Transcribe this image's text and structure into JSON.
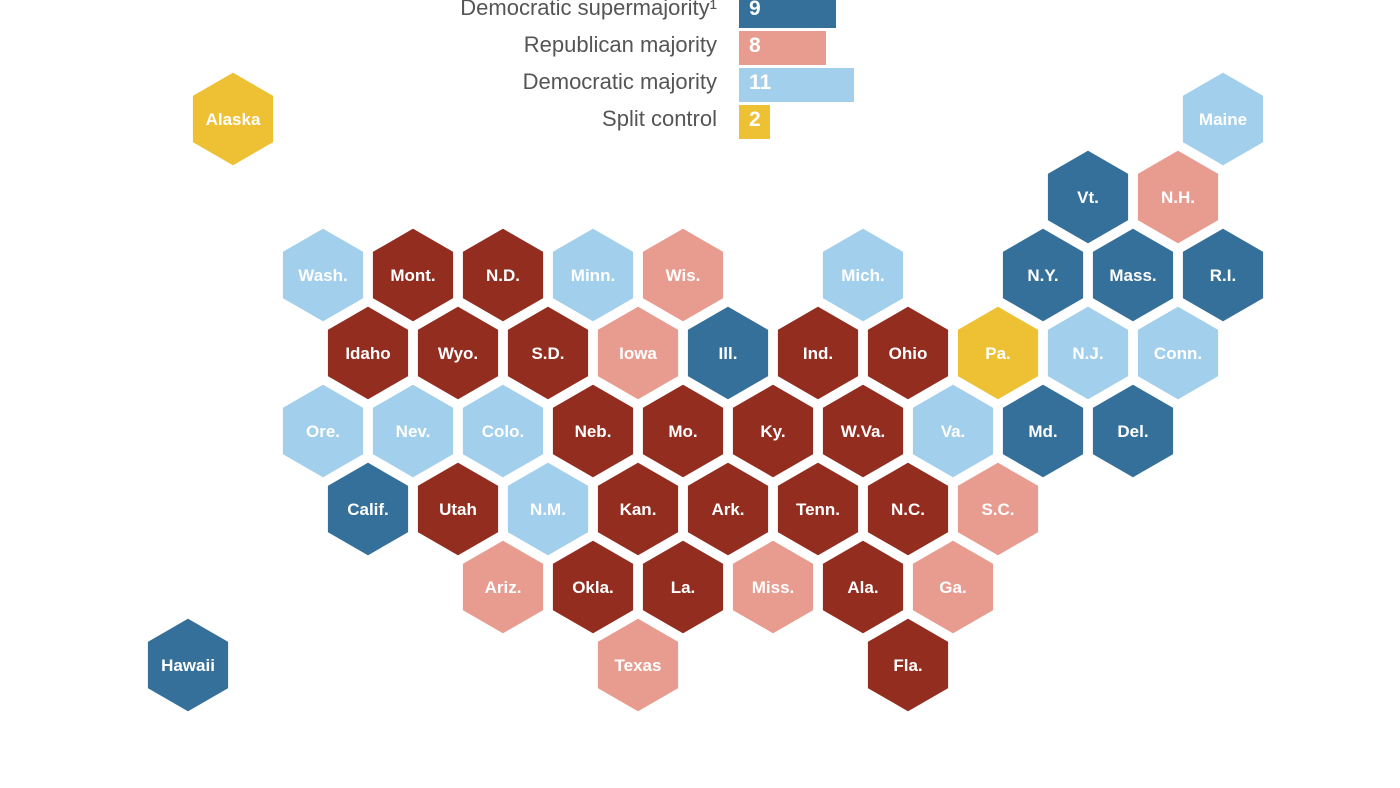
{
  "colors": {
    "dem_super": "#35709a",
    "rep_major": "#e89c8f",
    "dem_major": "#a2cfec",
    "split": "#eec135",
    "rep_super": "#922d20"
  },
  "legend": [
    {
      "label": "Democratic supermajority¹",
      "value": 9,
      "category": "dem_super"
    },
    {
      "label": "Republican majority",
      "value": 8,
      "category": "rep_major"
    },
    {
      "label": "Democratic majority",
      "value": 11,
      "category": "dem_major"
    },
    {
      "label": "Split control",
      "value": 2,
      "category": "split"
    }
  ],
  "states": [
    {
      "name": "Alaska",
      "row": 0,
      "col": 0,
      "cat": "split"
    },
    {
      "name": "Maine",
      "row": 0,
      "col": 11,
      "cat": "dem_major"
    },
    {
      "name": "Vt.",
      "row": 1,
      "col": 9.5,
      "cat": "dem_super"
    },
    {
      "name": "N.H.",
      "row": 1,
      "col": 10.5,
      "cat": "rep_major"
    },
    {
      "name": "Wash.",
      "row": 2,
      "col": 1,
      "cat": "dem_major"
    },
    {
      "name": "Mont.",
      "row": 2,
      "col": 2,
      "cat": "rep_super"
    },
    {
      "name": "N.D.",
      "row": 2,
      "col": 3,
      "cat": "rep_super"
    },
    {
      "name": "Minn.",
      "row": 2,
      "col": 4,
      "cat": "dem_major"
    },
    {
      "name": "Wis.",
      "row": 2,
      "col": 5,
      "cat": "rep_major"
    },
    {
      "name": "Mich.",
      "row": 2,
      "col": 7,
      "cat": "dem_major"
    },
    {
      "name": "N.Y.",
      "row": 2,
      "col": 9,
      "cat": "dem_super"
    },
    {
      "name": "Mass.",
      "row": 2,
      "col": 10,
      "cat": "dem_super"
    },
    {
      "name": "R.I.",
      "row": 2,
      "col": 11,
      "cat": "dem_super"
    },
    {
      "name": "Idaho",
      "row": 3,
      "col": 1.5,
      "cat": "rep_super"
    },
    {
      "name": "Wyo.",
      "row": 3,
      "col": 2.5,
      "cat": "rep_super"
    },
    {
      "name": "S.D.",
      "row": 3,
      "col": 3.5,
      "cat": "rep_super"
    },
    {
      "name": "Iowa",
      "row": 3,
      "col": 4.5,
      "cat": "rep_major"
    },
    {
      "name": "Ill.",
      "row": 3,
      "col": 5.5,
      "cat": "dem_super"
    },
    {
      "name": "Ind.",
      "row": 3,
      "col": 6.5,
      "cat": "rep_super"
    },
    {
      "name": "Ohio",
      "row": 3,
      "col": 7.5,
      "cat": "rep_super"
    },
    {
      "name": "Pa.",
      "row": 3,
      "col": 8.5,
      "cat": "split"
    },
    {
      "name": "N.J.",
      "row": 3,
      "col": 9.5,
      "cat": "dem_major"
    },
    {
      "name": "Conn.",
      "row": 3,
      "col": 10.5,
      "cat": "dem_major"
    },
    {
      "name": "Ore.",
      "row": 4,
      "col": 1,
      "cat": "dem_major"
    },
    {
      "name": "Nev.",
      "row": 4,
      "col": 2,
      "cat": "dem_major"
    },
    {
      "name": "Colo.",
      "row": 4,
      "col": 3,
      "cat": "dem_major"
    },
    {
      "name": "Neb.",
      "row": 4,
      "col": 4,
      "cat": "rep_super"
    },
    {
      "name": "Mo.",
      "row": 4,
      "col": 5,
      "cat": "rep_super"
    },
    {
      "name": "Ky.",
      "row": 4,
      "col": 6,
      "cat": "rep_super"
    },
    {
      "name": "W.Va.",
      "row": 4,
      "col": 7,
      "cat": "rep_super"
    },
    {
      "name": "Va.",
      "row": 4,
      "col": 8,
      "cat": "dem_major"
    },
    {
      "name": "Md.",
      "row": 4,
      "col": 9,
      "cat": "dem_super"
    },
    {
      "name": "Del.",
      "row": 4,
      "col": 10,
      "cat": "dem_super"
    },
    {
      "name": "Calif.",
      "row": 5,
      "col": 1.5,
      "cat": "dem_super"
    },
    {
      "name": "Utah",
      "row": 5,
      "col": 2.5,
      "cat": "rep_super"
    },
    {
      "name": "N.M.",
      "row": 5,
      "col": 3.5,
      "cat": "dem_major"
    },
    {
      "name": "Kan.",
      "row": 5,
      "col": 4.5,
      "cat": "rep_super"
    },
    {
      "name": "Ark.",
      "row": 5,
      "col": 5.5,
      "cat": "rep_super"
    },
    {
      "name": "Tenn.",
      "row": 5,
      "col": 6.5,
      "cat": "rep_super"
    },
    {
      "name": "N.C.",
      "row": 5,
      "col": 7.5,
      "cat": "rep_super"
    },
    {
      "name": "S.C.",
      "row": 5,
      "col": 8.5,
      "cat": "rep_major"
    },
    {
      "name": "Ariz.",
      "row": 6,
      "col": 3,
      "cat": "rep_major"
    },
    {
      "name": "Okla.",
      "row": 6,
      "col": 4,
      "cat": "rep_super"
    },
    {
      "name": "La.",
      "row": 6,
      "col": 5,
      "cat": "rep_super"
    },
    {
      "name": "Miss.",
      "row": 6,
      "col": 6,
      "cat": "rep_major"
    },
    {
      "name": "Ala.",
      "row": 6,
      "col": 7,
      "cat": "rep_super"
    },
    {
      "name": "Ga.",
      "row": 6,
      "col": 8,
      "cat": "rep_major"
    },
    {
      "name": "Hawaii",
      "row": 7,
      "col": -0.5,
      "cat": "dem_super"
    },
    {
      "name": "Texas",
      "row": 7,
      "col": 4.5,
      "cat": "rep_major"
    },
    {
      "name": "Fla.",
      "row": 7,
      "col": 7.5,
      "cat": "rep_super"
    }
  ]
}
